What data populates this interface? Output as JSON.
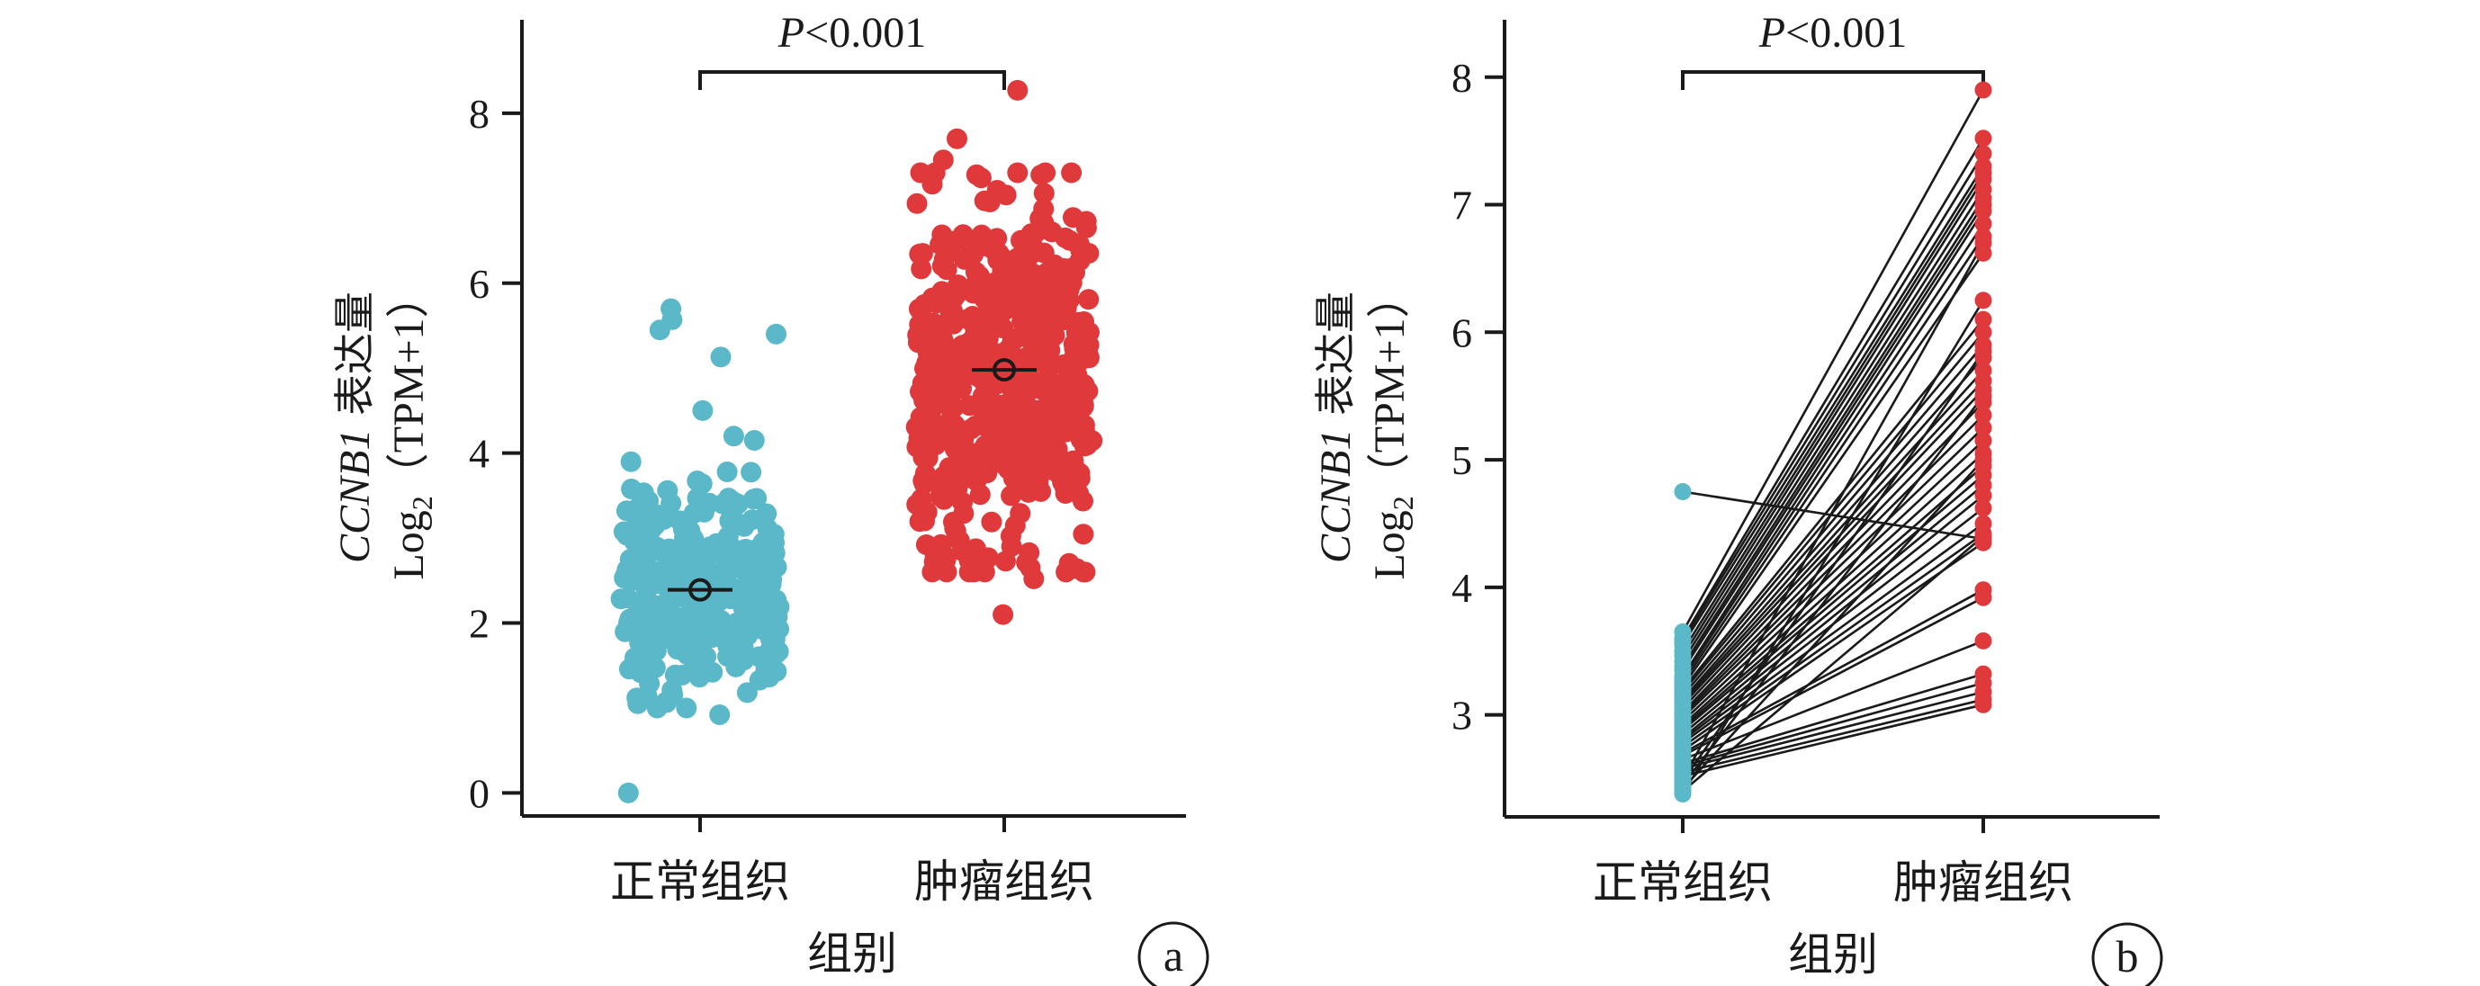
{
  "chart_data": [
    {
      "type": "scatter",
      "panel_label": "a",
      "sig_label": "P<0.001",
      "sig_letter": "P",
      "sig_rest": "<0.001",
      "ylabel_gene": "CCNB1",
      "ylabel_tail": " 表达量",
      "ylabel_log": "Log",
      "ylabel_sub": "2",
      "ylabel_unit": "（TPM+1）",
      "xlabel": "组别",
      "categories": [
        "正常组织",
        "肿瘤组织"
      ],
      "yticks": [
        0,
        2,
        4,
        6,
        8
      ],
      "ylim": [
        -0.25,
        9.1
      ],
      "series": [
        {
          "name": "正常组织",
          "color": "#5ab8c9",
          "n": 350,
          "mean": 2.39,
          "range": [
            0,
            5.7
          ],
          "values_highlight": [
            0,
            0.92,
            1.05,
            4.2,
            4.5,
            5.13,
            5.4,
            5.45,
            5.57,
            5.7
          ]
        },
        {
          "name": "肿瘤组织",
          "color": "#e0393b",
          "n": 530,
          "mean": 4.98,
          "range": [
            2.1,
            8.27
          ],
          "values_highlight": [
            2.1,
            2.52,
            2.65,
            7.3,
            7.45,
            7.7,
            8.27
          ]
        }
      ]
    },
    {
      "type": "line",
      "panel_label": "b",
      "sig_label": "P<0.001",
      "sig_letter": "P",
      "sig_rest": "<0.001",
      "ylabel_gene": "CCNB1",
      "ylabel_tail": " 表达量",
      "ylabel_log": "Log",
      "ylabel_sub": "2",
      "ylabel_unit": "（TPM+1）",
      "xlabel": "组别",
      "categories": [
        "正常组织",
        "肿瘤组织"
      ],
      "yticks": [
        3,
        4,
        5,
        6,
        7,
        8
      ],
      "ylim": [
        2.2,
        8.45
      ],
      "colors": {
        "normal": "#5ab8c9",
        "tumor": "#e0393b",
        "line": "#1a1a1a"
      },
      "pairs": [
        [
          4.75,
          4.38
        ],
        [
          3.65,
          7.9
        ],
        [
          3.6,
          7.52
        ],
        [
          3.58,
          7.4
        ],
        [
          3.55,
          7.3
        ],
        [
          3.5,
          7.25
        ],
        [
          3.46,
          7.2
        ],
        [
          3.42,
          7.12
        ],
        [
          3.38,
          7.05
        ],
        [
          3.35,
          7.0
        ],
        [
          3.3,
          6.95
        ],
        [
          3.28,
          6.85
        ],
        [
          3.25,
          6.75
        ],
        [
          3.22,
          6.62
        ],
        [
          3.2,
          6.1
        ],
        [
          3.18,
          6.0
        ],
        [
          3.15,
          5.9
        ],
        [
          3.12,
          5.8
        ],
        [
          3.1,
          5.7
        ],
        [
          3.08,
          5.62
        ],
        [
          3.05,
          5.55
        ],
        [
          3.02,
          5.45
        ],
        [
          3.0,
          5.35
        ],
        [
          2.98,
          5.25
        ],
        [
          2.95,
          5.15
        ],
        [
          2.92,
          5.05
        ],
        [
          2.9,
          4.95
        ],
        [
          2.88,
          4.88
        ],
        [
          2.85,
          4.8
        ],
        [
          2.82,
          4.72
        ],
        [
          2.8,
          4.62
        ],
        [
          2.78,
          4.5
        ],
        [
          2.75,
          4.42
        ],
        [
          2.72,
          4.35
        ],
        [
          2.7,
          3.98
        ],
        [
          2.68,
          3.92
        ],
        [
          2.65,
          3.58
        ],
        [
          2.62,
          3.32
        ],
        [
          2.6,
          3.25
        ],
        [
          2.58,
          3.18
        ],
        [
          2.55,
          3.12
        ],
        [
          2.52,
          3.08
        ],
        [
          2.5,
          6.7
        ],
        [
          2.48,
          5.85
        ],
        [
          2.45,
          5.5
        ],
        [
          2.42,
          5.0
        ],
        [
          2.4,
          4.4
        ],
        [
          2.38,
          6.25
        ]
      ]
    }
  ]
}
